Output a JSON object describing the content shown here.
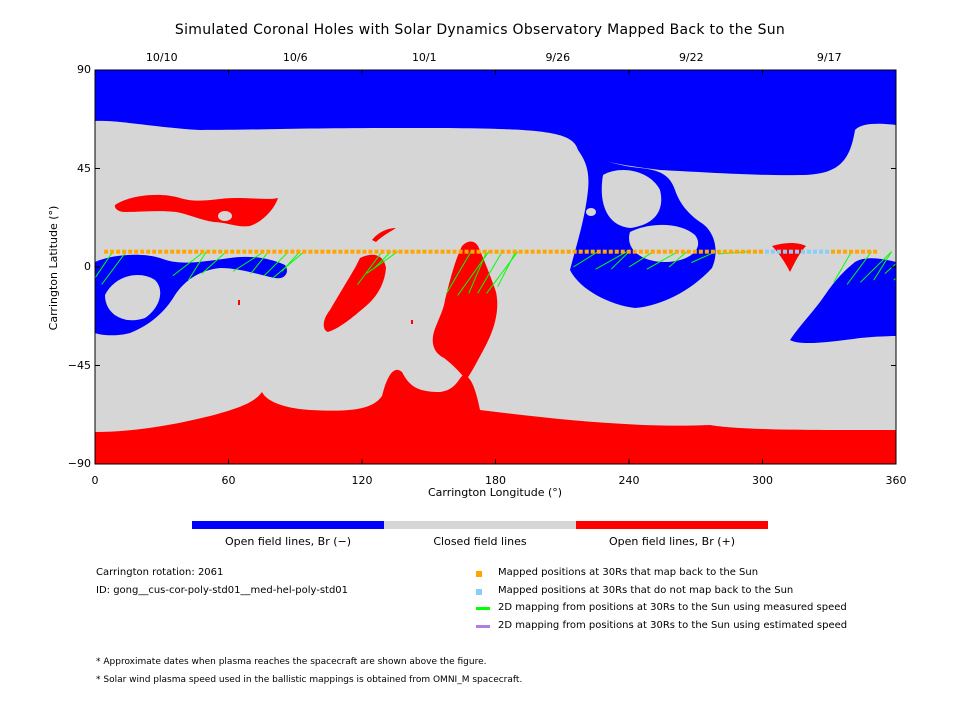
{
  "chart_data": {
    "type": "heatmap",
    "title": "Simulated Coronal Holes with Solar Dynamics Observatory Mapped Back to the Sun",
    "xlabel": "Carrington Longitude (°)",
    "ylabel": "Carrington Latitude (°)",
    "xlim": [
      0,
      360
    ],
    "ylim": [
      -90,
      90
    ],
    "x_ticks": [
      "0",
      "60",
      "120",
      "180",
      "240",
      "300",
      "360"
    ],
    "y_ticks": [
      "90",
      "45",
      "0",
      "−45",
      "−90"
    ],
    "top_date_ticks": [
      {
        "label": "10/10",
        "longitude": 30
      },
      {
        "label": "10/6",
        "longitude": 90
      },
      {
        "label": "10/1",
        "longitude": 148
      },
      {
        "label": "9/26",
        "longitude": 208
      },
      {
        "label": "9/22",
        "longitude": 268
      },
      {
        "label": "9/17",
        "longitude": 330
      }
    ],
    "colorbar": {
      "segments": [
        {
          "label": "Open field lines, Br (−)",
          "color": "#0000ff"
        },
        {
          "label": "Closed field lines",
          "color": "#d6d6d6"
        },
        {
          "label": "Open field lines, Br (+)",
          "color": "#ff0000"
        }
      ]
    },
    "mapped_latitude": 7,
    "mapped_longitude_range": [
      5,
      352
    ],
    "unmapped_longitude_range": [
      300,
      330
    ],
    "footpoints": [
      {
        "lon": 0,
        "lat": -5
      },
      {
        "lon": 3,
        "lat": -8
      },
      {
        "lon": 35,
        "lat": -4
      },
      {
        "lon": 42,
        "lat": -6
      },
      {
        "lon": 48,
        "lat": -3
      },
      {
        "lon": 62,
        "lat": -2
      },
      {
        "lon": 70,
        "lat": -3
      },
      {
        "lon": 76,
        "lat": -4
      },
      {
        "lon": 80,
        "lat": -5
      },
      {
        "lon": 84,
        "lat": -2
      },
      {
        "lon": 118,
        "lat": -8
      },
      {
        "lon": 122,
        "lat": -3
      },
      {
        "lon": 125,
        "lat": -1
      },
      {
        "lon": 158,
        "lat": -12
      },
      {
        "lon": 163,
        "lat": -13
      },
      {
        "lon": 168,
        "lat": -12
      },
      {
        "lon": 172,
        "lat": -12
      },
      {
        "lon": 176,
        "lat": -12
      },
      {
        "lon": 181,
        "lat": -9
      },
      {
        "lon": 215,
        "lat": 0
      },
      {
        "lon": 225,
        "lat": -1
      },
      {
        "lon": 232,
        "lat": -1
      },
      {
        "lon": 240,
        "lat": 0
      },
      {
        "lon": 248,
        "lat": -1
      },
      {
        "lon": 258,
        "lat": 0
      },
      {
        "lon": 268,
        "lat": 2
      },
      {
        "lon": 280,
        "lat": 6
      },
      {
        "lon": 332,
        "lat": -7
      },
      {
        "lon": 338,
        "lat": -8
      },
      {
        "lon": 344,
        "lat": -7
      },
      {
        "lon": 350,
        "lat": -6
      },
      {
        "lon": 355,
        "lat": -3
      },
      {
        "lon": 359,
        "lat": -6
      }
    ]
  },
  "colorbar_labels": {
    "neg": "Open field lines, Br (−)",
    "closed": "Closed field lines",
    "pos": "Open field lines, Br (+)"
  },
  "info": {
    "carrington_rotation": "Carrington rotation: 2061",
    "id": "ID: gong__cus-cor-poly-std01__med-hel-poly-std01"
  },
  "legend": [
    {
      "label": "Mapped positions at 30Rs that map back to the Sun",
      "color": "#ffa500",
      "kind": "square"
    },
    {
      "label": "Mapped positions at 30Rs that do not map back to the Sun",
      "color": "#87cefa",
      "kind": "square"
    },
    {
      "label": "2D mapping from positions at 30Rs to the Sun using measured speed",
      "color": "#00ff00",
      "kind": "line"
    },
    {
      "label": "2D mapping from positions at 30Rs to the Sun using estimated speed",
      "color": "#b07ee6",
      "kind": "line"
    }
  ],
  "footnotes": [
    "* Approximate dates when plasma reaches the spacecraft are shown above the figure.",
    "* Solar wind plasma speed used in the ballistic mappings is obtained from OMNI_M spacecraft."
  ]
}
